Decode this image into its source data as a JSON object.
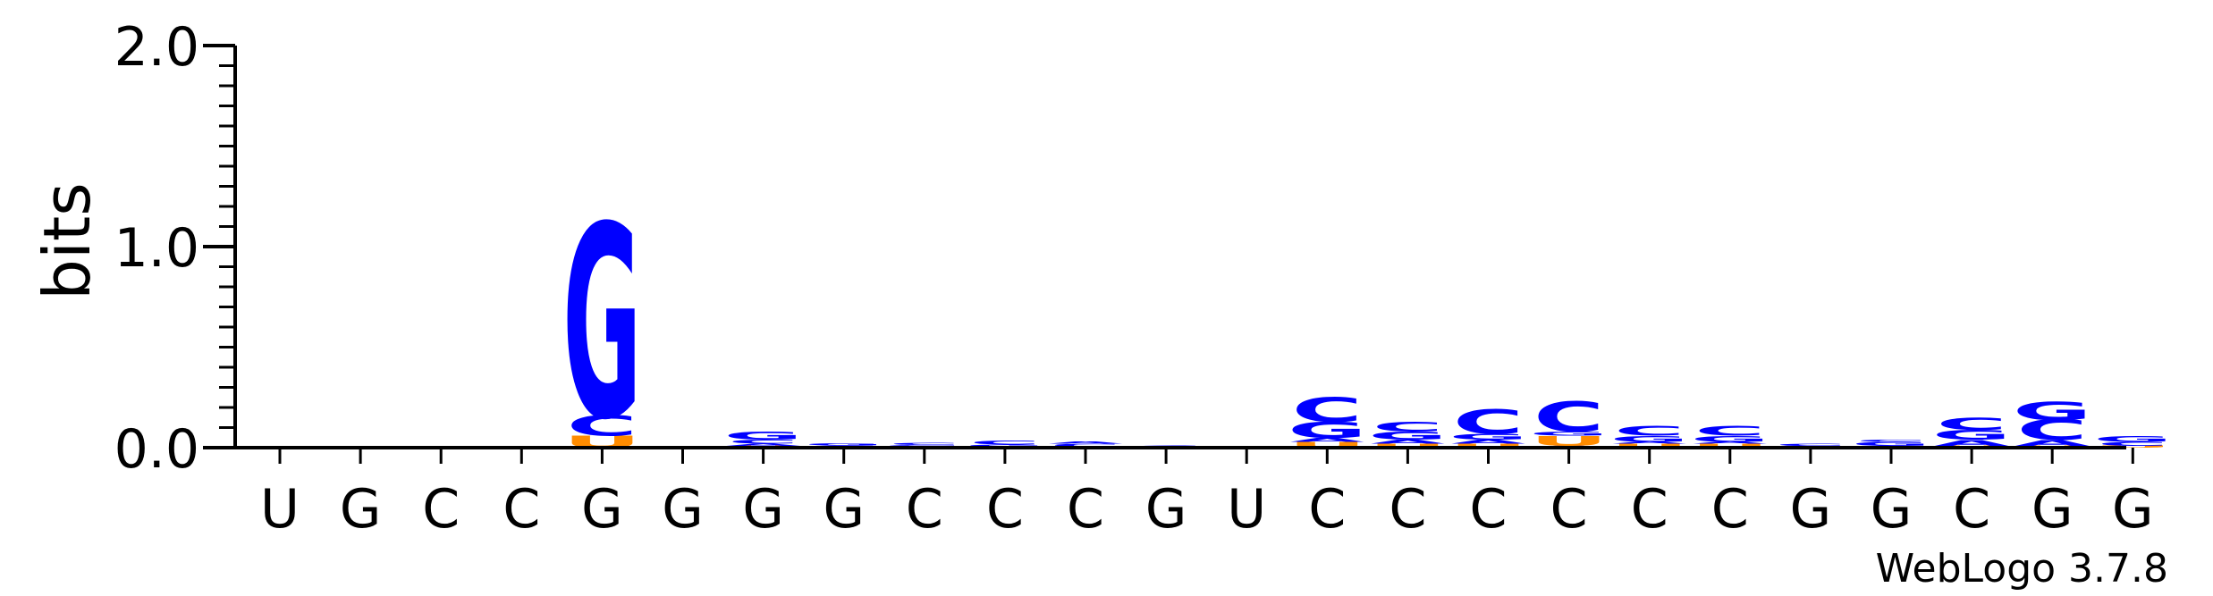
{
  "chart_data": {
    "type": "sequence-logo",
    "ylabel": "bits",
    "ylim": [
      0,
      2.0
    ],
    "y_ticks": [
      {
        "value": 0.0,
        "label": "0.0"
      },
      {
        "value": 1.0,
        "label": "1.0"
      },
      {
        "value": 2.0,
        "label": "2.0"
      }
    ],
    "y_minor_step": 0.1,
    "colors": {
      "G": "#0000ff",
      "C": "#0000ff",
      "U": "#ff8c00",
      "A": "#0000ff"
    },
    "x_labels": [
      "U",
      "G",
      "C",
      "C",
      "G",
      "G",
      "G",
      "G",
      "C",
      "C",
      "C",
      "G",
      "U",
      "C",
      "C",
      "C",
      "C",
      "C",
      "C",
      "G",
      "G",
      "C",
      "G",
      "G"
    ],
    "positions": [
      {
        "stack": []
      },
      {
        "stack": []
      },
      {
        "stack": []
      },
      {
        "stack": []
      },
      {
        "stack": [
          {
            "letter": "U",
            "bits": 0.06
          },
          {
            "letter": "C",
            "bits": 0.1
          },
          {
            "letter": "G",
            "bits": 0.96
          }
        ]
      },
      {
        "stack": [
          {
            "letter": "U",
            "bits": 0.005
          }
        ]
      },
      {
        "stack": [
          {
            "letter": "U",
            "bits": 0.01
          },
          {
            "letter": "A",
            "bits": 0.01
          },
          {
            "letter": "C",
            "bits": 0.02
          },
          {
            "letter": "G",
            "bits": 0.04
          }
        ]
      },
      {
        "stack": [
          {
            "letter": "U",
            "bits": 0.005
          },
          {
            "letter": "C",
            "bits": 0.005
          },
          {
            "letter": "G",
            "bits": 0.01
          }
        ]
      },
      {
        "stack": [
          {
            "letter": "A",
            "bits": 0.005
          },
          {
            "letter": "G",
            "bits": 0.008
          },
          {
            "letter": "C",
            "bits": 0.01
          }
        ]
      },
      {
        "stack": [
          {
            "letter": "A",
            "bits": 0.005
          },
          {
            "letter": "G",
            "bits": 0.01
          },
          {
            "letter": "C",
            "bits": 0.02
          }
        ]
      },
      {
        "stack": [
          {
            "letter": "G",
            "bits": 0.005
          },
          {
            "letter": "C",
            "bits": 0.015
          },
          {
            "letter": "A",
            "bits": 0.01
          }
        ]
      },
      {
        "stack": [
          {
            "letter": "C",
            "bits": 0.01
          }
        ]
      },
      {
        "stack": []
      },
      {
        "stack": [
          {
            "letter": "U",
            "bits": 0.03
          },
          {
            "letter": "A",
            "bits": 0.02
          },
          {
            "letter": "G",
            "bits": 0.08
          },
          {
            "letter": "C",
            "bits": 0.12
          }
        ]
      },
      {
        "stack": [
          {
            "letter": "U",
            "bits": 0.02
          },
          {
            "letter": "A",
            "bits": 0.02
          },
          {
            "letter": "G",
            "bits": 0.04
          },
          {
            "letter": "C",
            "bits": 0.05
          }
        ]
      },
      {
        "stack": [
          {
            "letter": "U",
            "bits": 0.02
          },
          {
            "letter": "A",
            "bits": 0.02
          },
          {
            "letter": "G",
            "bits": 0.03
          },
          {
            "letter": "C",
            "bits": 0.12
          }
        ]
      },
      {
        "stack": [
          {
            "letter": "A",
            "bits": 0.01
          },
          {
            "letter": "U",
            "bits": 0.05
          },
          {
            "letter": "G",
            "bits": 0.02
          },
          {
            "letter": "C",
            "bits": 0.15
          }
        ]
      },
      {
        "stack": [
          {
            "letter": "U",
            "bits": 0.02
          },
          {
            "letter": "A",
            "bits": 0.01
          },
          {
            "letter": "G",
            "bits": 0.03
          },
          {
            "letter": "C",
            "bits": 0.05
          }
        ]
      },
      {
        "stack": [
          {
            "letter": "U",
            "bits": 0.02
          },
          {
            "letter": "A",
            "bits": 0.01
          },
          {
            "letter": "G",
            "bits": 0.03
          },
          {
            "letter": "C",
            "bits": 0.05
          }
        ]
      },
      {
        "stack": [
          {
            "letter": "G",
            "bits": 0.01
          },
          {
            "letter": "C",
            "bits": 0.01
          }
        ]
      },
      {
        "stack": [
          {
            "letter": "A",
            "bits": 0.01
          },
          {
            "letter": "G",
            "bits": 0.02
          },
          {
            "letter": "C",
            "bits": 0.01
          }
        ]
      },
      {
        "stack": [
          {
            "letter": "U",
            "bits": 0.01
          },
          {
            "letter": "A",
            "bits": 0.03
          },
          {
            "letter": "G",
            "bits": 0.05
          },
          {
            "letter": "C",
            "bits": 0.06
          }
        ]
      },
      {
        "stack": [
          {
            "letter": "U",
            "bits": 0.01
          },
          {
            "letter": "A",
            "bits": 0.03
          },
          {
            "letter": "C",
            "bits": 0.1
          },
          {
            "letter": "G",
            "bits": 0.09
          }
        ]
      },
      {
        "stack": [
          {
            "letter": "U",
            "bits": 0.01
          },
          {
            "letter": "C",
            "bits": 0.02
          },
          {
            "letter": "G",
            "bits": 0.03
          }
        ]
      }
    ]
  },
  "credit": "WebLogo 3.7.8"
}
